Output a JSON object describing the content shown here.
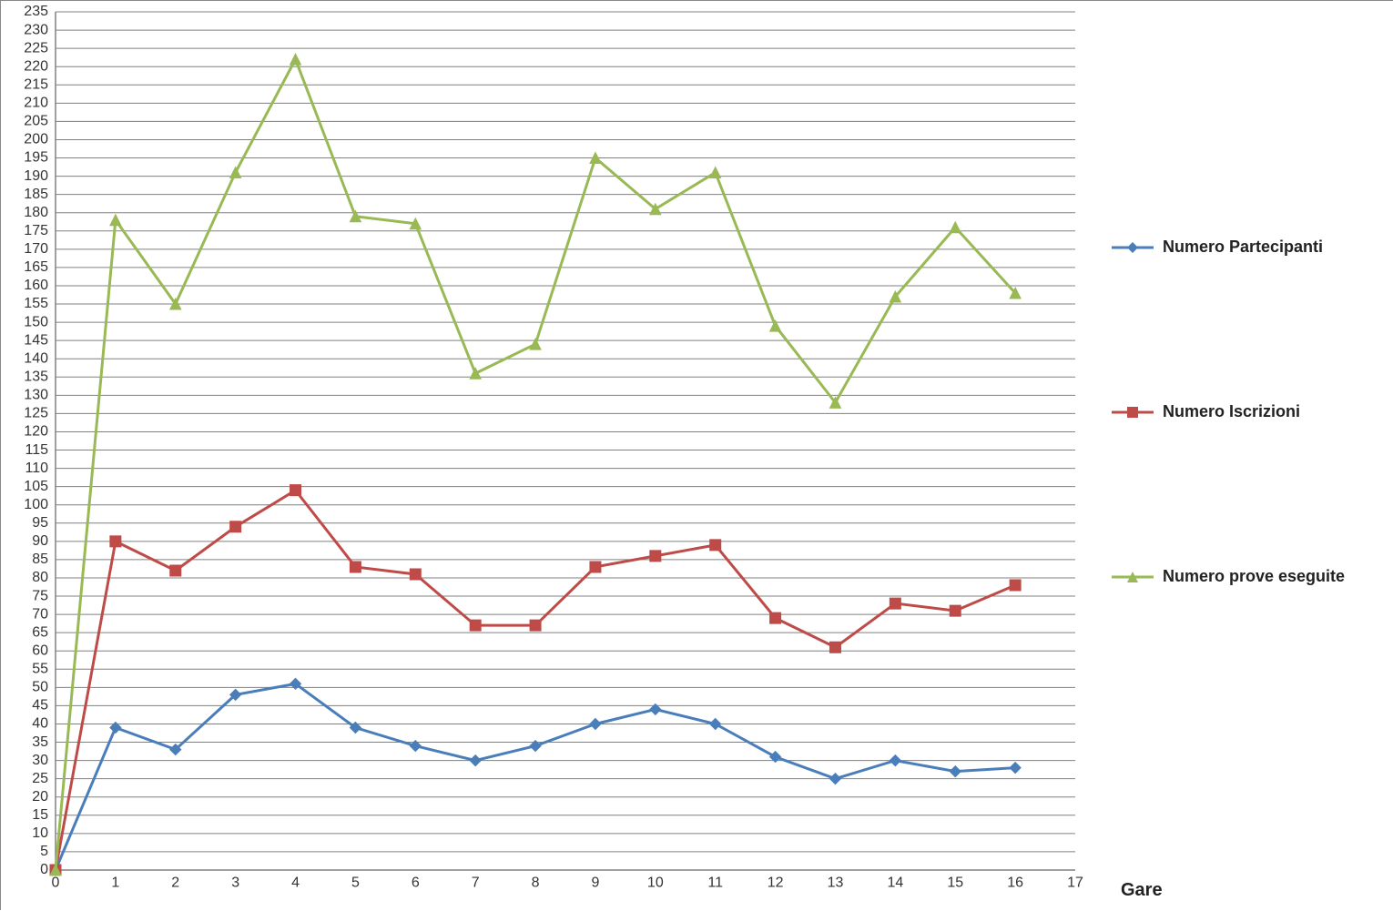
{
  "chart": {
    "type": "line",
    "x_axis_title": "Gare",
    "xlim": [
      0,
      17
    ],
    "xtick_step": 1,
    "ylim": [
      0,
      235
    ],
    "ytick_step": 5,
    "background_color": "#ffffff",
    "grid_color": "#808080",
    "axis_color": "#808080",
    "line_width": 3,
    "marker_size": 12,
    "axis_title_fontsize": 20,
    "tick_fontsize": 16,
    "categories_x": [
      0,
      1,
      2,
      3,
      4,
      5,
      6,
      7,
      8,
      9,
      10,
      11,
      12,
      13,
      14,
      15,
      16
    ],
    "series": [
      {
        "name": "Numero Partecipanti",
        "color": "#4a7ebb",
        "marker_shape": "diamond",
        "values": [
          0,
          39,
          33,
          48,
          51,
          39,
          34,
          30,
          34,
          40,
          44,
          40,
          31,
          25,
          30,
          27,
          28
        ]
      },
      {
        "name": "Numero Iscrizioni",
        "color": "#be4b48",
        "marker_shape": "square",
        "values": [
          0,
          90,
          82,
          94,
          104,
          83,
          81,
          67,
          67,
          83,
          86,
          89,
          69,
          61,
          73,
          71,
          78
        ]
      },
      {
        "name": "Numero prove eseguite",
        "color": "#98b954",
        "marker_shape": "triangle",
        "values": [
          0,
          178,
          155,
          191,
          222,
          179,
          177,
          136,
          144,
          195,
          181,
          191,
          149,
          128,
          157,
          176,
          158
        ]
      }
    ]
  }
}
